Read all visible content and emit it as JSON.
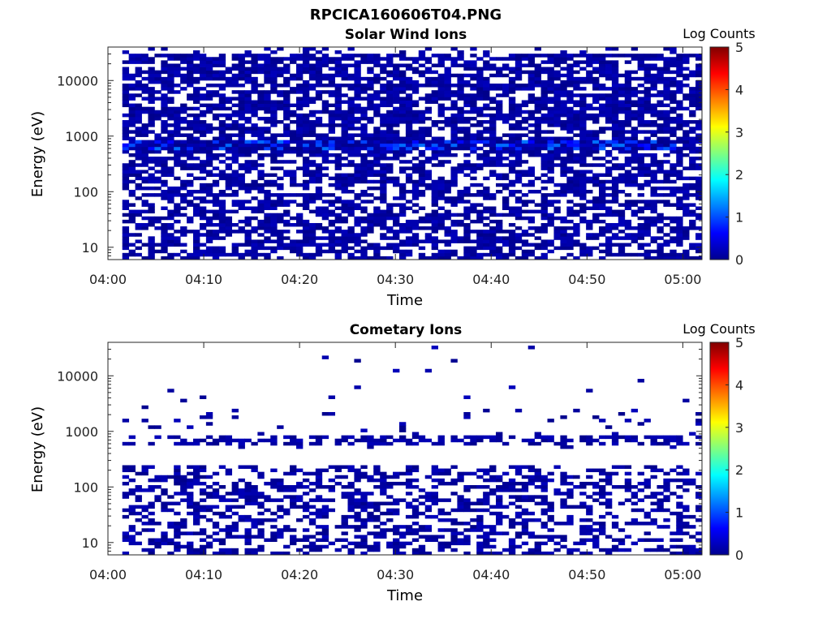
{
  "figure": {
    "title": "RPCICA160606T04.PNG"
  },
  "chart_data": [
    {
      "type": "heatmap",
      "title": "Solar Wind Ions",
      "xlabel": "Time",
      "ylabel": "Energy (eV)",
      "x_ticks": [
        "04:00",
        "04:10",
        "04:20",
        "04:30",
        "04:40",
        "04:50",
        "05:00"
      ],
      "x_tick_minutes": [
        0,
        10,
        20,
        30,
        40,
        50,
        60
      ],
      "xlim_minutes": [
        0,
        62
      ],
      "y_ticks": [
        "10",
        "100",
        "1000",
        "10000"
      ],
      "y_tick_values": [
        10,
        100,
        1000,
        10000
      ],
      "ylim": [
        6,
        40000
      ],
      "y_scale": "log",
      "colorbar": {
        "label": "Log Counts",
        "range": [
          0,
          5
        ],
        "ticks": [
          "0",
          "1",
          "2",
          "3",
          "4",
          "5"
        ]
      },
      "data_time_range_minutes": [
        1.5,
        62
      ],
      "peak_energy_eV": 700,
      "peak_log_counts": 1.2,
      "shape": {
        "high_band": [
          400,
          30000
        ],
        "low_band": [
          6,
          400
        ],
        "hi_fill": 0.7,
        "lo_fill": 0.6,
        "x_bins": 90,
        "seed": 17
      }
    },
    {
      "type": "heatmap",
      "title": "Cometary Ions",
      "xlabel": "Time",
      "ylabel": "Energy (eV)",
      "x_ticks": [
        "04:00",
        "04:10",
        "04:20",
        "04:30",
        "04:40",
        "04:50",
        "05:00"
      ],
      "x_tick_minutes": [
        0,
        10,
        20,
        30,
        40,
        50,
        60
      ],
      "xlim_minutes": [
        0,
        62
      ],
      "y_ticks": [
        "10",
        "100",
        "1000",
        "10000"
      ],
      "y_tick_values": [
        10,
        100,
        1000,
        10000
      ],
      "ylim": [
        6,
        40000
      ],
      "y_scale": "log",
      "colorbar": {
        "label": "Log Counts",
        "range": [
          0,
          5
        ],
        "ticks": [
          "0",
          "1",
          "2",
          "3",
          "4",
          "5"
        ]
      },
      "data_time_range_minutes": [
        1.5,
        62
      ],
      "peak_energy_eV": 700,
      "peak_log_counts": 0.3,
      "shape": {
        "high_band": [
          500,
          2500
        ],
        "low_band": [
          6,
          250
        ],
        "hi_fill": 0.06,
        "lo_fill": 0.45,
        "x_bins": 90,
        "seed": 29
      }
    }
  ]
}
